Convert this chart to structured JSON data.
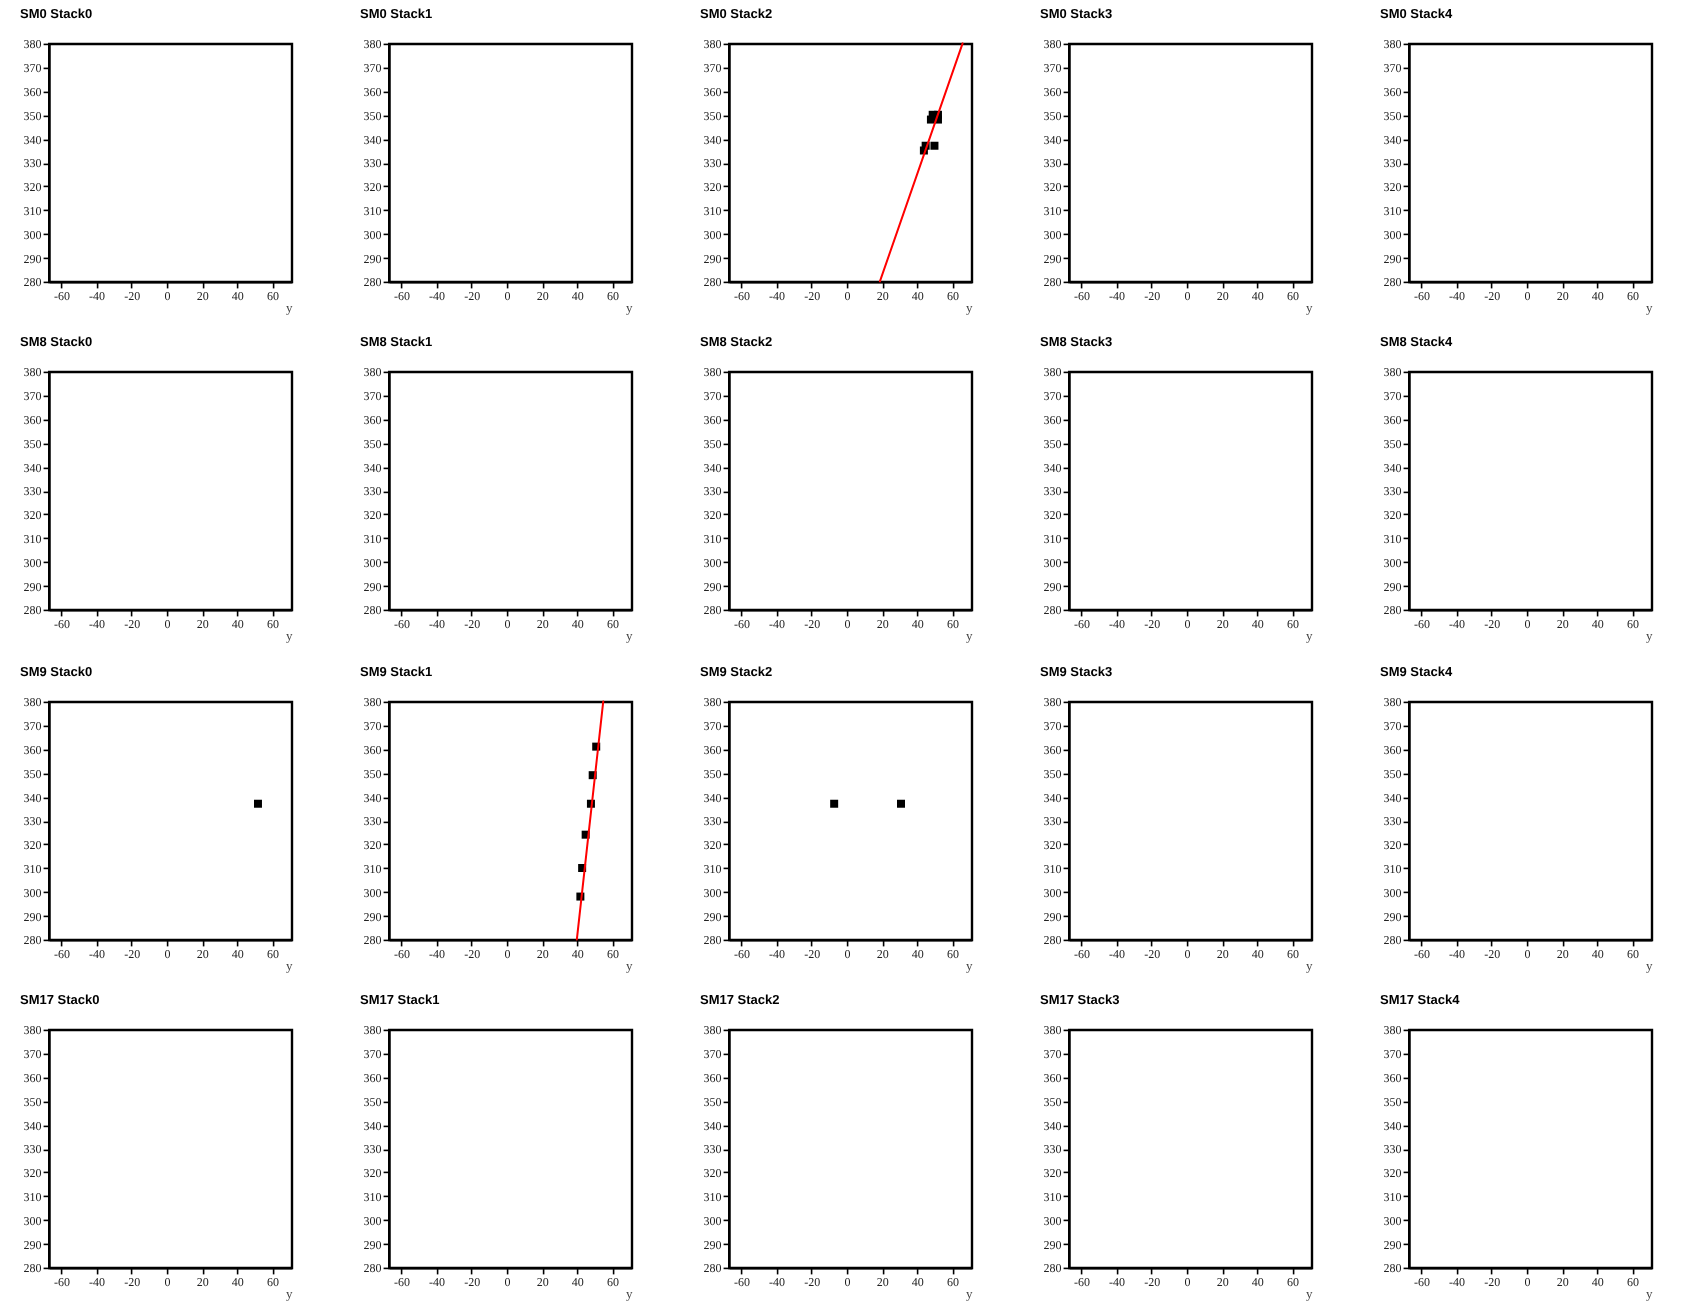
{
  "chart_data": [
    {
      "type": "scatter",
      "title": "SM0 Stack0",
      "xlabel": "y",
      "xlim": [
        -67,
        71
      ],
      "ylim": [
        280,
        380
      ],
      "xticks": [
        -60,
        -40,
        -20,
        0,
        20,
        40,
        60
      ],
      "yticks": [
        280,
        290,
        300,
        310,
        320,
        330,
        340,
        350,
        360,
        370,
        380
      ],
      "grid": false
    },
    {
      "type": "scatter",
      "title": "SM0 Stack1",
      "xlabel": "y",
      "xlim": [
        -67,
        71
      ],
      "ylim": [
        280,
        380
      ],
      "xticks": [
        -60,
        -40,
        -20,
        0,
        20,
        40,
        60
      ],
      "yticks": [
        280,
        290,
        300,
        310,
        320,
        330,
        340,
        350,
        360,
        370,
        380
      ],
      "grid": false
    },
    {
      "type": "scatter",
      "title": "SM0 Stack2",
      "xlabel": "y",
      "xlim": [
        -67,
        71
      ],
      "ylim": [
        280,
        380
      ],
      "xticks": [
        -60,
        -40,
        -20,
        0,
        20,
        40,
        60
      ],
      "yticks": [
        280,
        290,
        300,
        310,
        320,
        330,
        340,
        350,
        360,
        370,
        380
      ],
      "grid": false,
      "series": [
        {
          "type": "scatter",
          "marker": "square",
          "color": "#000000",
          "x": [
            44,
            45,
            50,
            48,
            49,
            52,
            52
          ],
          "values": [
            335,
            337,
            337,
            348,
            350,
            350,
            348
          ]
        },
        {
          "type": "line",
          "color": "#ff0000",
          "x": [
            19,
            66
          ],
          "values": [
            280,
            380
          ]
        }
      ]
    },
    {
      "type": "scatter",
      "title": "SM0 Stack3",
      "xlabel": "y",
      "xlim": [
        -67,
        71
      ],
      "ylim": [
        280,
        380
      ],
      "xticks": [
        -60,
        -40,
        -20,
        0,
        20,
        40,
        60
      ],
      "yticks": [
        280,
        290,
        300,
        310,
        320,
        330,
        340,
        350,
        360,
        370,
        380
      ],
      "grid": false
    },
    {
      "type": "scatter",
      "title": "SM0 Stack4",
      "xlabel": "y",
      "xlim": [
        -67,
        71
      ],
      "ylim": [
        280,
        380
      ],
      "xticks": [
        -60,
        -40,
        -20,
        0,
        20,
        40,
        60
      ],
      "yticks": [
        280,
        290,
        300,
        310,
        320,
        330,
        340,
        350,
        360,
        370,
        380
      ],
      "grid": false
    },
    {
      "type": "scatter",
      "title": "SM8 Stack0",
      "xlabel": "y",
      "xlim": [
        -67,
        71
      ],
      "ylim": [
        280,
        380
      ],
      "xticks": [
        -60,
        -40,
        -20,
        0,
        20,
        40,
        60
      ],
      "yticks": [
        280,
        290,
        300,
        310,
        320,
        330,
        340,
        350,
        360,
        370,
        380
      ],
      "grid": false
    },
    {
      "type": "scatter",
      "title": "SM8 Stack1",
      "xlabel": "y",
      "xlim": [
        -67,
        71
      ],
      "ylim": [
        280,
        380
      ],
      "xticks": [
        -60,
        -40,
        -20,
        0,
        20,
        40,
        60
      ],
      "yticks": [
        280,
        290,
        300,
        310,
        320,
        330,
        340,
        350,
        360,
        370,
        380
      ],
      "grid": false
    },
    {
      "type": "scatter",
      "title": "SM8 Stack2",
      "xlabel": "y",
      "xlim": [
        -67,
        71
      ],
      "ylim": [
        280,
        380
      ],
      "xticks": [
        -60,
        -40,
        -20,
        0,
        20,
        40,
        60
      ],
      "yticks": [
        280,
        290,
        300,
        310,
        320,
        330,
        340,
        350,
        360,
        370,
        380
      ],
      "grid": false
    },
    {
      "type": "scatter",
      "title": "SM8 Stack3",
      "xlabel": "y",
      "xlim": [
        -67,
        71
      ],
      "ylim": [
        280,
        380
      ],
      "xticks": [
        -60,
        -40,
        -20,
        0,
        20,
        40,
        60
      ],
      "yticks": [
        280,
        290,
        300,
        310,
        320,
        330,
        340,
        350,
        360,
        370,
        380
      ],
      "grid": false
    },
    {
      "type": "scatter",
      "title": "SM8 Stack4",
      "xlabel": "y",
      "xlim": [
        -67,
        71
      ],
      "ylim": [
        280,
        380
      ],
      "xticks": [
        -60,
        -40,
        -20,
        0,
        20,
        40,
        60
      ],
      "yticks": [
        280,
        290,
        300,
        310,
        320,
        330,
        340,
        350,
        360,
        370,
        380
      ],
      "grid": false
    },
    {
      "type": "scatter",
      "title": "SM9 Stack0",
      "xlabel": "y",
      "xlim": [
        -67,
        71
      ],
      "ylim": [
        280,
        380
      ],
      "xticks": [
        -60,
        -40,
        -20,
        0,
        20,
        40,
        60
      ],
      "yticks": [
        280,
        290,
        300,
        310,
        320,
        330,
        340,
        350,
        360,
        370,
        380
      ],
      "grid": false,
      "series": [
        {
          "type": "scatter",
          "marker": "square",
          "color": "#000000",
          "x": [
            52
          ],
          "values": [
            337
          ]
        }
      ]
    },
    {
      "type": "scatter",
      "title": "SM9 Stack1",
      "xlabel": "y",
      "xlim": [
        -67,
        71
      ],
      "ylim": [
        280,
        380
      ],
      "xticks": [
        -60,
        -40,
        -20,
        0,
        20,
        40,
        60
      ],
      "yticks": [
        280,
        290,
        300,
        310,
        320,
        330,
        340,
        350,
        360,
        370,
        380
      ],
      "grid": false,
      "series": [
        {
          "type": "scatter",
          "marker": "square",
          "color": "#000000",
          "x": [
            42,
            43,
            45,
            48,
            49,
            51
          ],
          "values": [
            298,
            310,
            324,
            337,
            349,
            361
          ]
        },
        {
          "type": "line",
          "color": "#ff0000",
          "x": [
            40,
            55
          ],
          "values": [
            280,
            380
          ]
        }
      ]
    },
    {
      "type": "scatter",
      "title": "SM9 Stack2",
      "xlabel": "y",
      "xlim": [
        -67,
        71
      ],
      "ylim": [
        280,
        380
      ],
      "xticks": [
        -60,
        -40,
        -20,
        0,
        20,
        40,
        60
      ],
      "yticks": [
        280,
        290,
        300,
        310,
        320,
        330,
        340,
        350,
        360,
        370,
        380
      ],
      "grid": false,
      "series": [
        {
          "type": "scatter",
          "marker": "square",
          "color": "#000000",
          "x": [
            -7,
            31
          ],
          "values": [
            337,
            337
          ]
        }
      ]
    },
    {
      "type": "scatter",
      "title": "SM9 Stack3",
      "xlabel": "y",
      "xlim": [
        -67,
        71
      ],
      "ylim": [
        280,
        380
      ],
      "xticks": [
        -60,
        -40,
        -20,
        0,
        20,
        40,
        60
      ],
      "yticks": [
        280,
        290,
        300,
        310,
        320,
        330,
        340,
        350,
        360,
        370,
        380
      ],
      "grid": false
    },
    {
      "type": "scatter",
      "title": "SM9 Stack4",
      "xlabel": "y",
      "xlim": [
        -67,
        71
      ],
      "ylim": [
        280,
        380
      ],
      "xticks": [
        -60,
        -40,
        -20,
        0,
        20,
        40,
        60
      ],
      "yticks": [
        280,
        290,
        300,
        310,
        320,
        330,
        340,
        350,
        360,
        370,
        380
      ],
      "grid": false
    },
    {
      "type": "scatter",
      "title": "SM17 Stack0",
      "xlabel": "y",
      "xlim": [
        -67,
        71
      ],
      "ylim": [
        280,
        380
      ],
      "xticks": [
        -60,
        -40,
        -20,
        0,
        20,
        40,
        60
      ],
      "yticks": [
        280,
        290,
        300,
        310,
        320,
        330,
        340,
        350,
        360,
        370,
        380
      ],
      "grid": false
    },
    {
      "type": "scatter",
      "title": "SM17 Stack1",
      "xlabel": "y",
      "xlim": [
        -67,
        71
      ],
      "ylim": [
        280,
        380
      ],
      "xticks": [
        -60,
        -40,
        -20,
        0,
        20,
        40,
        60
      ],
      "yticks": [
        280,
        290,
        300,
        310,
        320,
        330,
        340,
        350,
        360,
        370,
        380
      ],
      "grid": false
    },
    {
      "type": "scatter",
      "title": "SM17 Stack2",
      "xlabel": "y",
      "xlim": [
        -67,
        71
      ],
      "ylim": [
        280,
        380
      ],
      "xticks": [
        -60,
        -40,
        -20,
        0,
        20,
        40,
        60
      ],
      "yticks": [
        280,
        290,
        300,
        310,
        320,
        330,
        340,
        350,
        360,
        370,
        380
      ],
      "grid": false
    },
    {
      "type": "scatter",
      "title": "SM17 Stack3",
      "xlabel": "y",
      "xlim": [
        -67,
        71
      ],
      "ylim": [
        280,
        380
      ],
      "xticks": [
        -60,
        -40,
        -20,
        0,
        20,
        40,
        60
      ],
      "yticks": [
        280,
        290,
        300,
        310,
        320,
        330,
        340,
        350,
        360,
        370,
        380
      ],
      "grid": false
    },
    {
      "type": "scatter",
      "title": "SM17 Stack4",
      "xlabel": "y",
      "xlim": [
        -67,
        71
      ],
      "ylim": [
        280,
        380
      ],
      "xticks": [
        -60,
        -40,
        -20,
        0,
        20,
        40,
        60
      ],
      "yticks": [
        280,
        290,
        300,
        310,
        320,
        330,
        340,
        350,
        360,
        370,
        380
      ],
      "grid": false
    }
  ]
}
